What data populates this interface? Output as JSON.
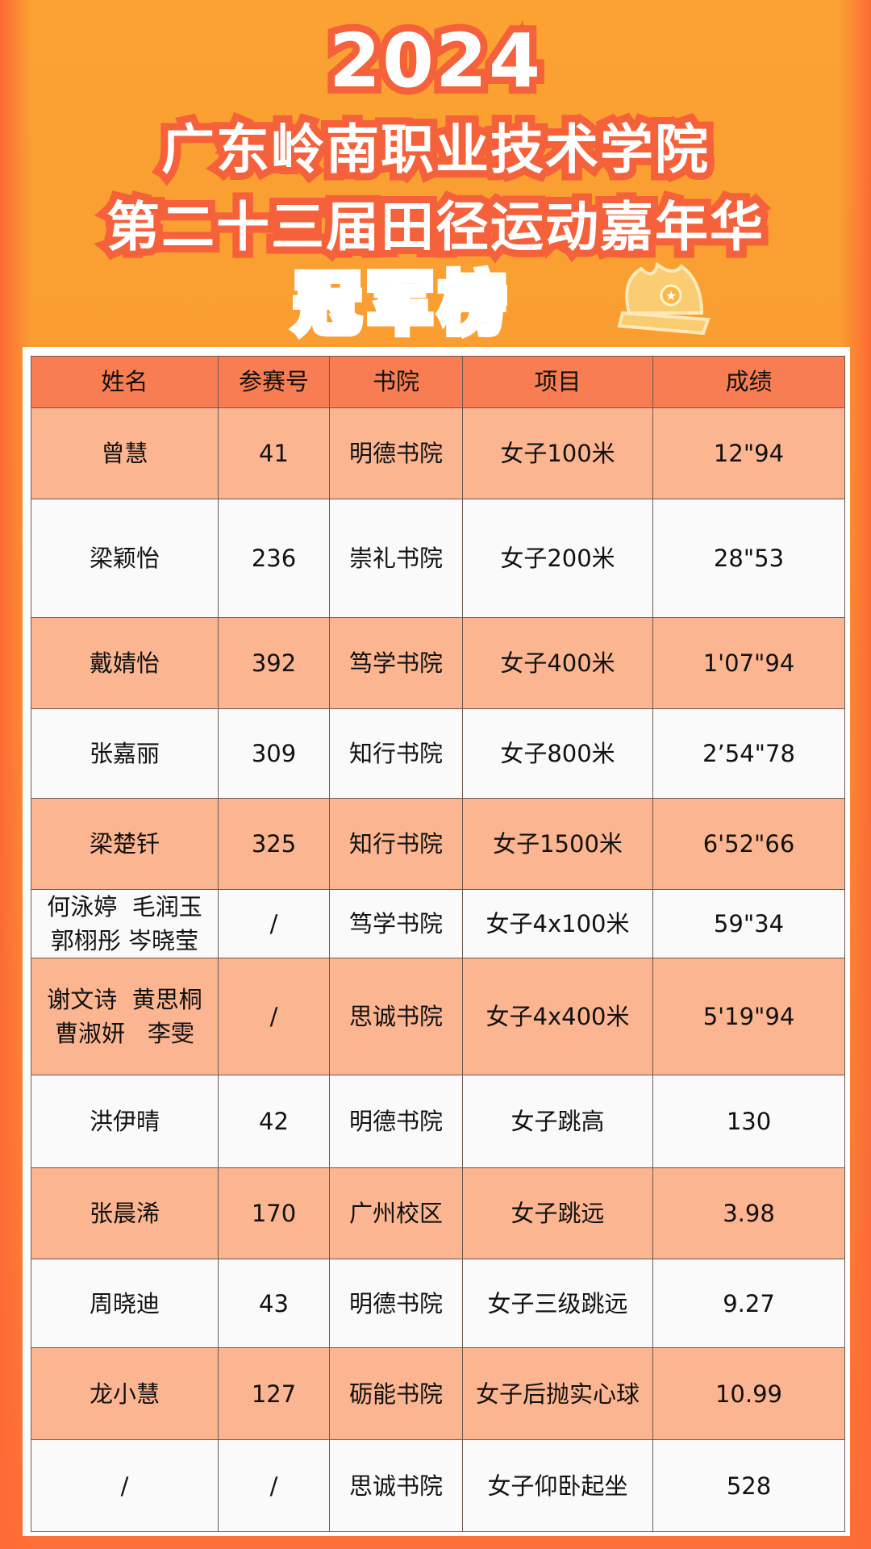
{
  "header": {
    "year": "2024",
    "line1": "广东岭南职业技术学院",
    "line2": "第二十三届田径运动嘉年华",
    "champion_title": "冠军榜"
  },
  "colors": {
    "header_row": "#f87d52",
    "peach_row": "#fbb591",
    "white_row": "#fafafa",
    "title_stroke": "#f4613a",
    "background_top": "#fba233",
    "background_bottom": "#fd6f37"
  },
  "icons": {
    "crown": "crown-icon"
  },
  "table": {
    "columns": [
      "姓名",
      "参赛号",
      "书院",
      "项目",
      "成绩"
    ],
    "rows": [
      {
        "name": "曾慧",
        "number": "41",
        "college": "明德书院",
        "event": "女子100米",
        "result": "12\"94"
      },
      {
        "name": "梁颖怡",
        "number": "236",
        "college": "崇礼书院",
        "event": "女子200米",
        "result": "28\"53"
      },
      {
        "name": "戴婧怡",
        "number": "392",
        "college": "笃学书院",
        "event": "女子400米",
        "result": "1'07\"94"
      },
      {
        "name": "张嘉丽",
        "number": "309",
        "college": "知行书院",
        "event": "女子800米",
        "result": "2’54\"78"
      },
      {
        "name": "梁楚钎",
        "number": "325",
        "college": "知行书院",
        "event": "女子1500米",
        "result": "6'52\"66"
      },
      {
        "name": "何泳婷  毛润玉",
        "name2": "郭栩彤 岑晓莹",
        "number": "/",
        "college": "笃学书院",
        "event": "女子4x100米",
        "result": "59\"34"
      },
      {
        "name": "谢文诗  黄思桐",
        "name2": "曹淑妍   李雯",
        "number": "/",
        "college": "思诚书院",
        "event": "女子4x400米",
        "result": "5'19\"94"
      },
      {
        "name": "洪伊晴",
        "number": "42",
        "college": "明德书院",
        "event": "女子跳高",
        "result": "130"
      },
      {
        "name": "张晨浠",
        "number": "170",
        "college": "广州校区",
        "event": "女子跳远",
        "result": "3.98"
      },
      {
        "name": "周晓迪",
        "number": "43",
        "college": "明德书院",
        "event": "女子三级跳远",
        "result": "9.27"
      },
      {
        "name": "龙小慧",
        "number": "127",
        "college": "砺能书院",
        "event": "女子后抛实心球",
        "result": "10.99"
      },
      {
        "name": "/",
        "number": "/",
        "college": "思诚书院",
        "event": "女子仰卧起坐",
        "result": "528"
      }
    ]
  }
}
